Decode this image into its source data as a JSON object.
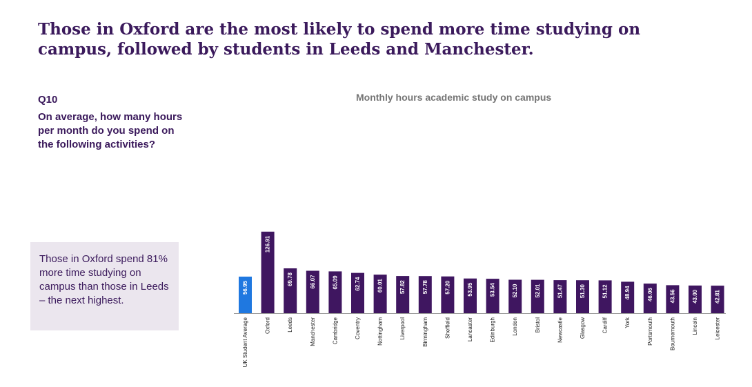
{
  "headline": "Those in Oxford are the most likely to spend more time studying on campus, followed by students in Leeds and Manchester.",
  "question": {
    "id": "Q10",
    "text": "On average, how many hours per month do you spend on the following activities?"
  },
  "callout": "Those in Oxford spend 81% more time studying on campus than those in Leeds – the next highest.",
  "colors": {
    "highlight": "#1f78e0",
    "bar": "#3f1660",
    "axis": "#9a9a9a"
  },
  "chart_data": {
    "type": "bar",
    "title": "Monthly hours academic study on campus",
    "xlabel": "",
    "ylabel": "",
    "ylim": [
      0,
      130
    ],
    "grid": false,
    "categories": [
      "UK Student Average",
      "Oxford",
      "Leeds",
      "Manchester",
      "Cambridge",
      "Coventry",
      "Nottingham",
      "Liverpool",
      "Birmingham",
      "Sheffield",
      "Lancaster",
      "Edinburgh",
      "London",
      "Bristol",
      "Newcastle",
      "Glasgow",
      "Cardiff",
      "York",
      "Portsmouth",
      "Bournemouth",
      "Lincoln",
      "Leicester"
    ],
    "values": [
      56.95,
      126.91,
      69.78,
      66.07,
      65.09,
      62.74,
      60.01,
      57.82,
      57.78,
      57.2,
      53.95,
      53.54,
      52.1,
      52.01,
      51.47,
      51.3,
      51.12,
      48.94,
      46.06,
      43.56,
      43.0,
      42.81
    ],
    "value_labels": [
      "56.95",
      "126.91",
      "69.78",
      "66.07",
      "65.09",
      "62.74",
      "60.01",
      "57.82",
      "57.78",
      "57.20",
      "53.95",
      "53.54",
      "52.10",
      "52.01",
      "51.47",
      "51.30",
      "51.12",
      "48.94",
      "46.06",
      "43.56",
      "43.00",
      "42.81"
    ],
    "highlight_index": 0
  }
}
